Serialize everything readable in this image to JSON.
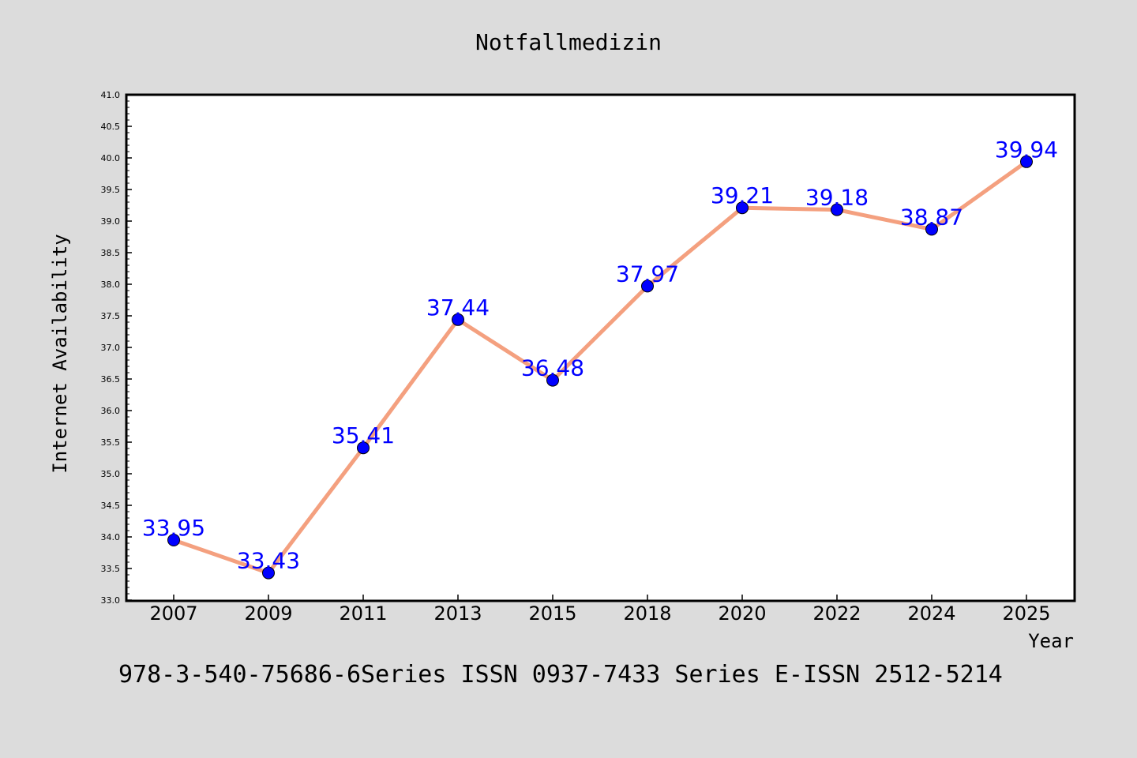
{
  "chart_data": {
    "type": "line",
    "title": "Notfallmedizin",
    "xlabel": "Year",
    "ylabel": "Internet Availability",
    "categories": [
      "2007",
      "2009",
      "2011",
      "2013",
      "2015",
      "2018",
      "2020",
      "2022",
      "2024",
      "2025"
    ],
    "series": [
      {
        "values": [
          33.95,
          33.43,
          35.41,
          37.44,
          36.48,
          37.97,
          39.21,
          39.18,
          38.87,
          39.94
        ],
        "line_color": "#f4a07f",
        "marker_color": "#0000ff",
        "label_color": "#0000ff"
      }
    ],
    "data_labels": [
      "33.95",
      "33.43",
      "35.41",
      "37.44",
      "36.48",
      "37.97",
      "39.21",
      "39.18",
      "38.87",
      "39.94"
    ],
    "ylim": [
      33.0,
      41.0
    ],
    "yticks": [
      "33.0",
      "33.5",
      "34.0",
      "34.5",
      "35.0",
      "35.5",
      "36.0",
      "36.5",
      "37.0",
      "37.5",
      "38.0",
      "38.5",
      "39.0",
      "39.5",
      "40.0",
      "40.5",
      "41.0"
    ],
    "grid": false,
    "legend": "none"
  },
  "footer": {
    "text": "978-3-540-75686-6Series ISSN 0937-7433 Series E-ISSN 2512-5214"
  },
  "colors": {
    "background": "#dcdcdc",
    "plot_background": "#ffffff",
    "line": "#f4a07f",
    "marker": "#0000ff",
    "label": "#0000ff"
  }
}
